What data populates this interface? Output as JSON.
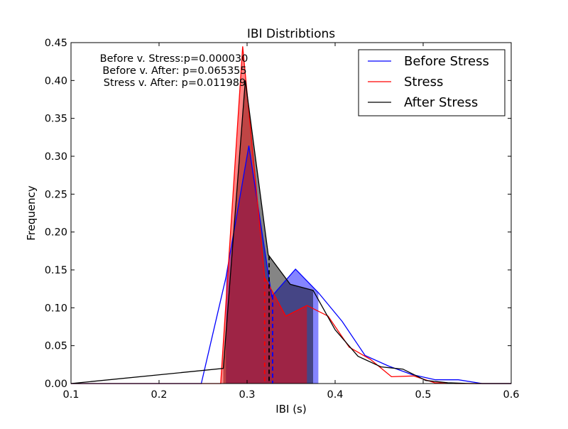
{
  "chart_data": {
    "type": "line",
    "title": "IBI Distribtions",
    "xlabel": "IBI (s)",
    "ylabel": "Frequency",
    "xlim": [
      0.1,
      0.6
    ],
    "ylim": [
      0.0,
      0.45
    ],
    "xticks": [
      "0.1",
      "0.2",
      "0.3",
      "0.4",
      "0.5",
      "0.6"
    ],
    "yticks": [
      "0.00",
      "0.05",
      "0.10",
      "0.15",
      "0.20",
      "0.25",
      "0.30",
      "0.35",
      "0.40",
      "0.45"
    ],
    "grid": false,
    "legend_position": "top-right",
    "annotations": [
      "Before v. Stress:p=0.000030",
      "Before v. After: p=0.065355",
      "Stress v. After: p=0.011989"
    ],
    "series": [
      {
        "name": "Before Stress",
        "color": "#0000ff",
        "x": [
          0.1,
          0.248,
          0.276,
          0.302,
          0.328,
          0.355,
          0.381,
          0.408,
          0.434,
          0.461,
          0.487,
          0.514,
          0.54,
          0.567,
          0.6
        ],
        "y": [
          0.0,
          0.0,
          0.14,
          0.314,
          0.115,
          0.151,
          0.12,
          0.082,
          0.037,
          0.023,
          0.012,
          0.005,
          0.005,
          0.0,
          0.0
        ],
        "fill_range": [
          0.276,
          0.381
        ],
        "mean_line": 0.329
      },
      {
        "name": "Stress",
        "color": "#ff0000",
        "x": [
          0.1,
          0.27,
          0.295,
          0.32,
          0.344,
          0.368,
          0.392,
          0.416,
          0.44,
          0.464,
          0.489,
          0.513,
          0.537,
          0.6
        ],
        "y": [
          0.0,
          0.0,
          0.445,
          0.14,
          0.089,
          0.103,
          0.089,
          0.048,
          0.032,
          0.009,
          0.01,
          0.001,
          0.0,
          0.0
        ],
        "fill_range": [
          0.27,
          0.368
        ],
        "mean_line": 0.32
      },
      {
        "name": "After Stress",
        "color": "#000000",
        "x": [
          0.1,
          0.273,
          0.298,
          0.324,
          0.349,
          0.375,
          0.4,
          0.426,
          0.452,
          0.477,
          0.503,
          0.528,
          0.554,
          0.6
        ],
        "y": [
          0.0,
          0.02,
          0.4,
          0.17,
          0.131,
          0.123,
          0.071,
          0.036,
          0.022,
          0.019,
          0.004,
          0.001,
          0.0,
          0.0
        ],
        "fill_range": [
          0.273,
          0.375
        ],
        "mean_line": 0.325
      }
    ]
  }
}
